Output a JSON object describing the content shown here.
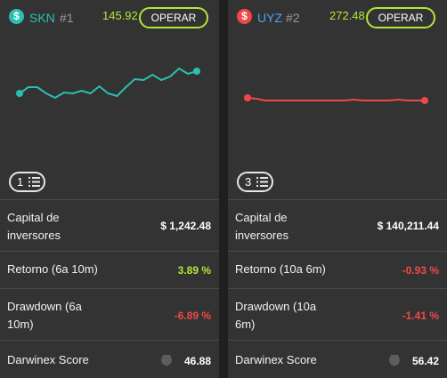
{
  "cards": [
    {
      "currency_icon": "dollar-icon",
      "currency_symbol": "$",
      "icon_color": "#2bbfb3",
      "symbol": "SKN",
      "symbol_color": "#2bbfb3",
      "rank": "#1",
      "header_value": "145.92",
      "operar_label": "OPERAR",
      "line_color": "#2bbfb3",
      "trend": [
        0.55,
        0.62,
        0.62,
        0.55,
        0.5,
        0.56,
        0.55,
        0.58,
        0.55,
        0.63,
        0.55,
        0.52,
        0.62,
        0.71,
        0.7,
        0.76,
        0.7,
        0.74,
        0.83,
        0.77,
        0.8
      ],
      "list_count": "1",
      "list_icon": "list-icon",
      "stats": {
        "capital_label": "Capital de inversores",
        "capital_value": "$ 1,242.48",
        "retorno_label": "Retorno (6a 10m)",
        "retorno_value": "3.89 %",
        "retorno_color": "#b5e53a",
        "drawdown_label": "Drawdown (6a 10m)",
        "drawdown_value": "-6.89 %",
        "drawdown_color": "#f04848",
        "score_label": "Darwinex Score",
        "score_value": "46.88",
        "score_icon": "shield-icon"
      }
    },
    {
      "currency_icon": "dollar-icon",
      "currency_symbol": "$",
      "icon_color": "#f04848",
      "symbol": "UYZ",
      "symbol_color": "#4da3f5",
      "rank": "#2",
      "header_value": "272.48",
      "operar_label": "OPERAR",
      "line_color": "#f04848",
      "trend": [
        0.5,
        0.49,
        0.47,
        0.47,
        0.47,
        0.47,
        0.47,
        0.47,
        0.47,
        0.47,
        0.47,
        0.47,
        0.48,
        0.47,
        0.47,
        0.47,
        0.47,
        0.48,
        0.47,
        0.47,
        0.47
      ],
      "list_count": "3",
      "list_icon": "list-icon",
      "stats": {
        "capital_label": "Capital de inversores",
        "capital_value": "$ 140,211.44",
        "retorno_label": "Retorno (10a 6m)",
        "retorno_value": "-0.93 %",
        "retorno_color": "#f04848",
        "drawdown_label": "Drawdown (10a 6m)",
        "drawdown_value": "-1.41 %",
        "drawdown_color": "#f04848",
        "score_label": "Darwinex Score",
        "score_value": "56.42",
        "score_icon": "shield-icon"
      }
    }
  ]
}
